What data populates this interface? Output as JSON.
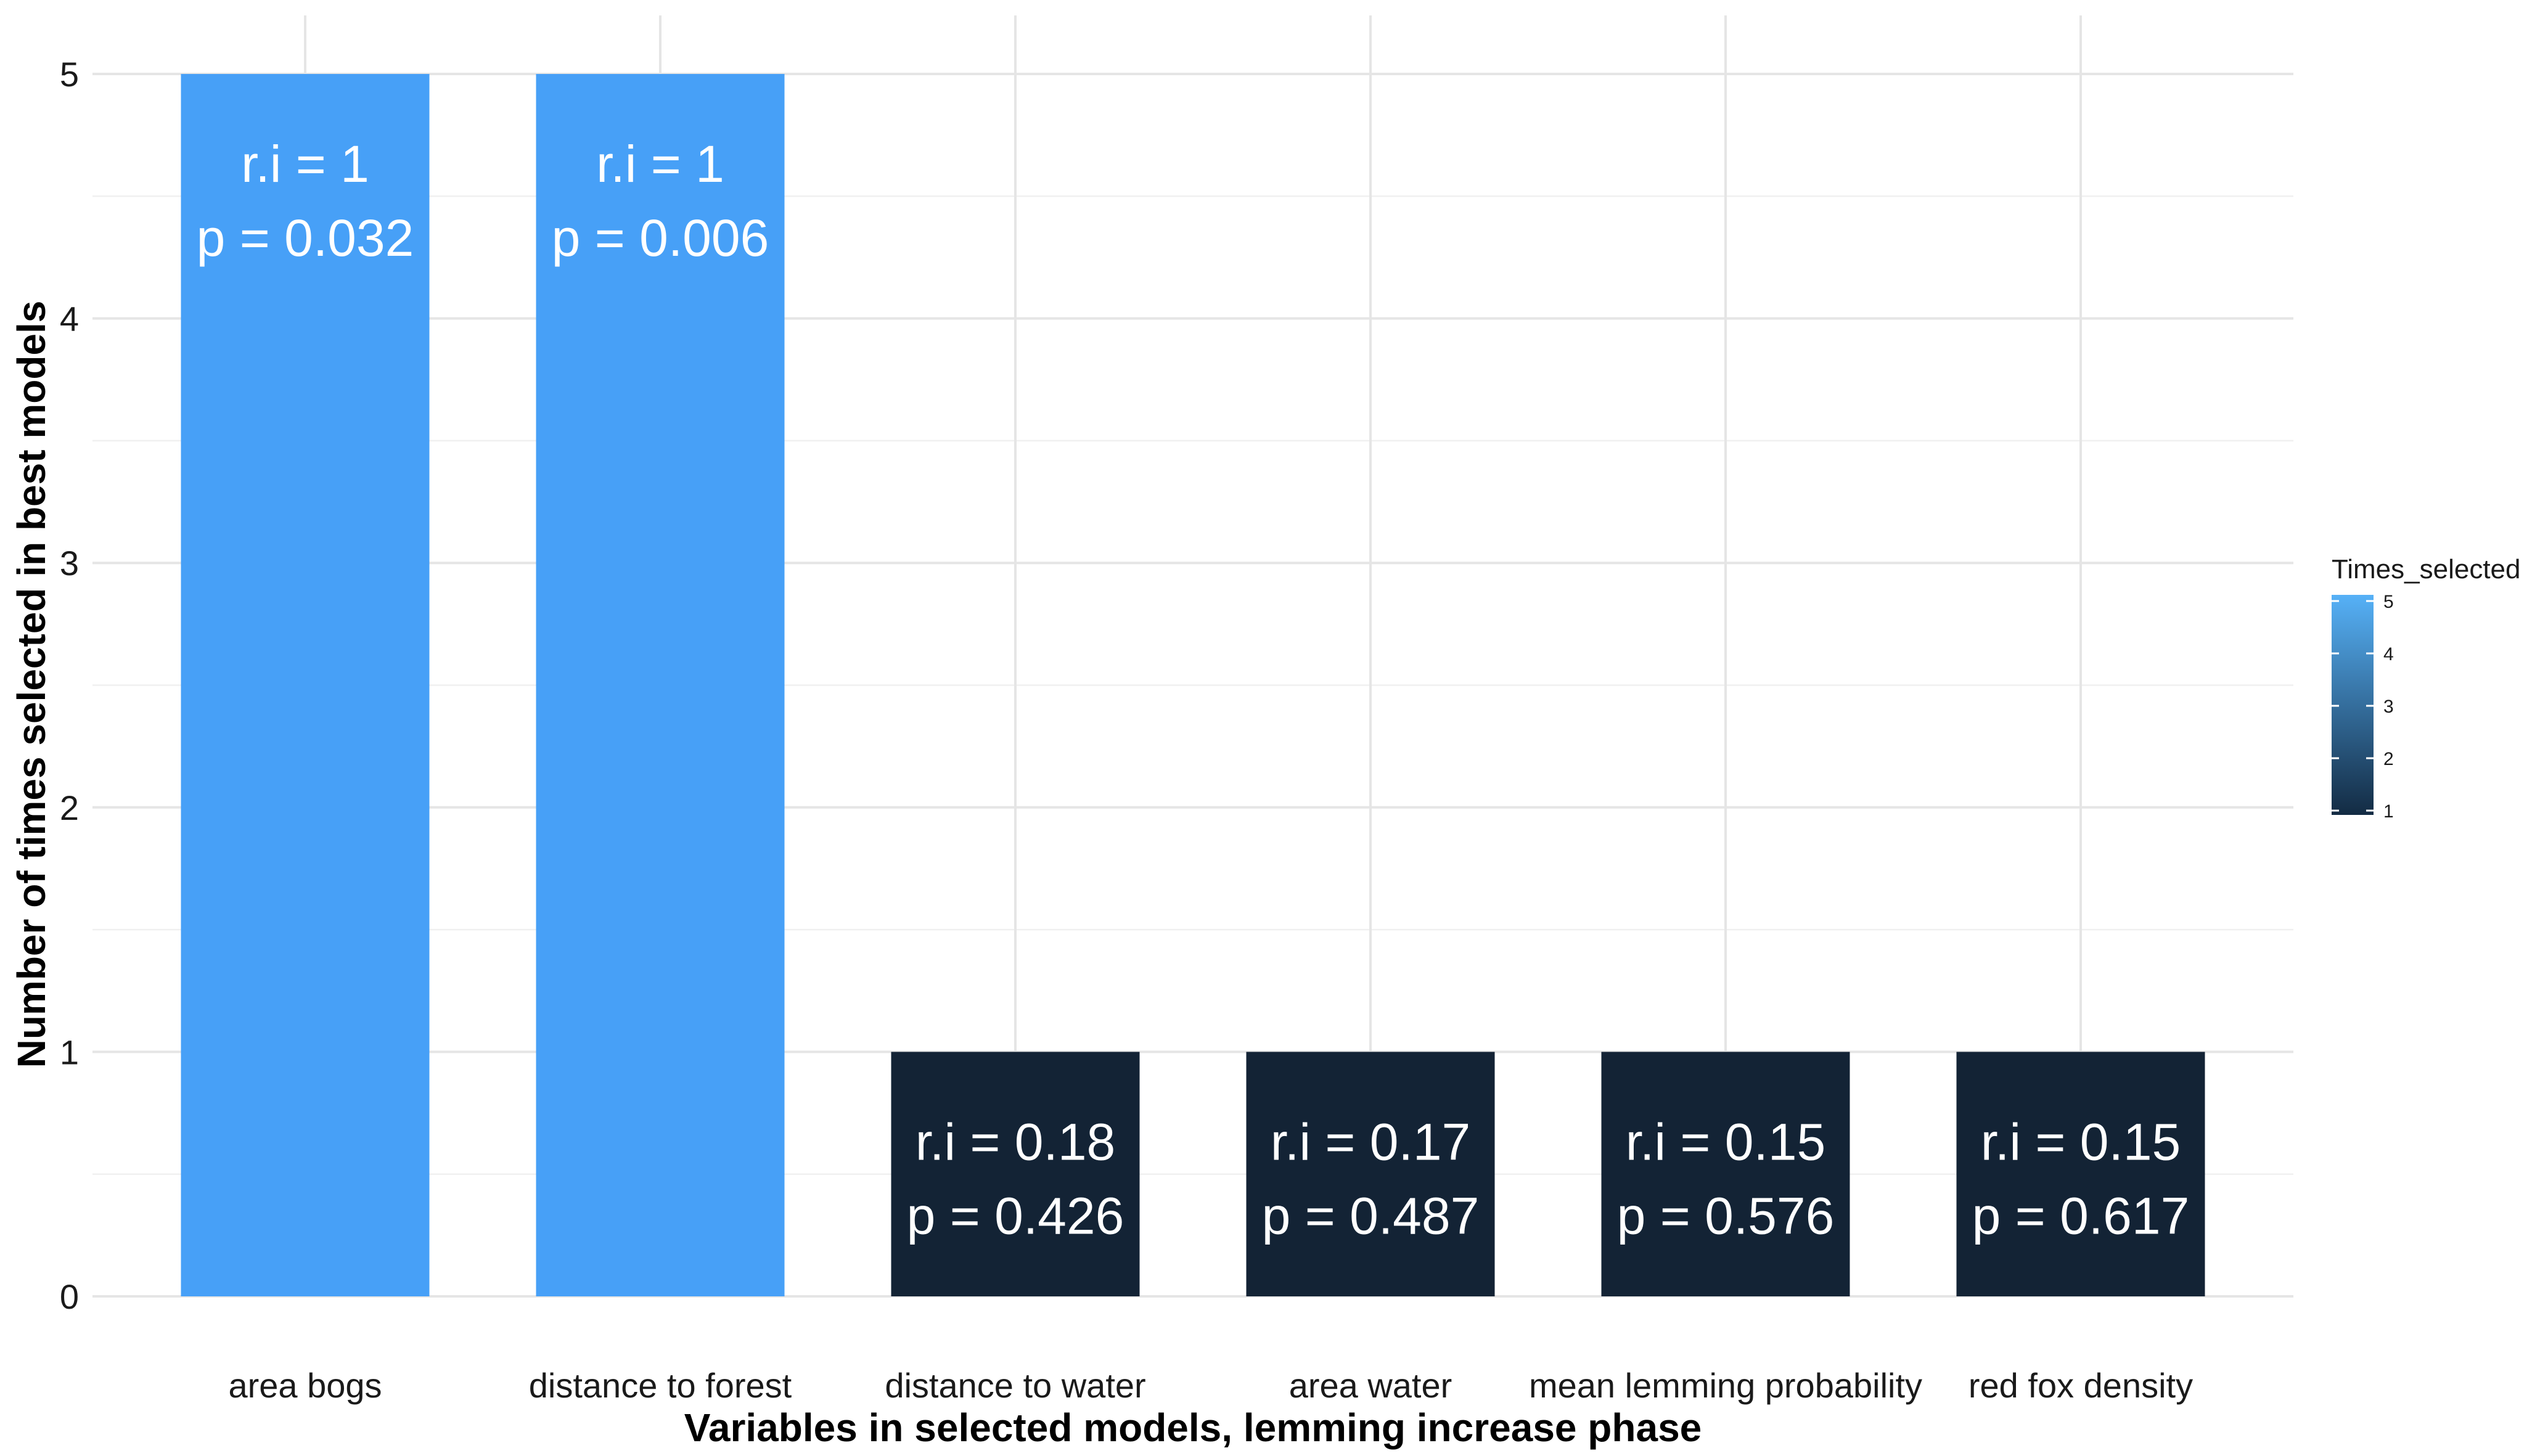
{
  "chart_data": {
    "type": "bar",
    "categories": [
      "area bogs",
      "distance to forest",
      "distance to water",
      "area water",
      "mean lemming probability",
      "red fox density"
    ],
    "values": [
      5,
      5,
      1,
      1,
      1,
      1
    ],
    "bar_labels": [
      [
        "r.i = 1",
        "p = 0.032"
      ],
      [
        "r.i = 1",
        "p = 0.006"
      ],
      [
        "r.i = 0.18",
        "p = 0.426"
      ],
      [
        "r.i = 0.17",
        "p = 0.487"
      ],
      [
        "r.i = 0.15",
        "p = 0.576"
      ],
      [
        "r.i = 0.15",
        "p = 0.617"
      ]
    ],
    "xlabel": "Variables in selected models, lemming increase phase",
    "ylabel": "Number of times selected in best models",
    "ylim": [
      0,
      5
    ],
    "yticks": [
      0,
      1,
      2,
      3,
      4,
      5
    ],
    "grid": true,
    "legend": {
      "title": "Times_selected",
      "placement": "right",
      "type": "colorbar",
      "range": [
        1,
        5
      ],
      "ticks": [
        1,
        2,
        3,
        4,
        5
      ],
      "color_low": "#132B43",
      "color_high": "#56B1F7"
    },
    "colors": {
      "bar_high": "#47a0f7",
      "bar_low": "#132335"
    }
  }
}
